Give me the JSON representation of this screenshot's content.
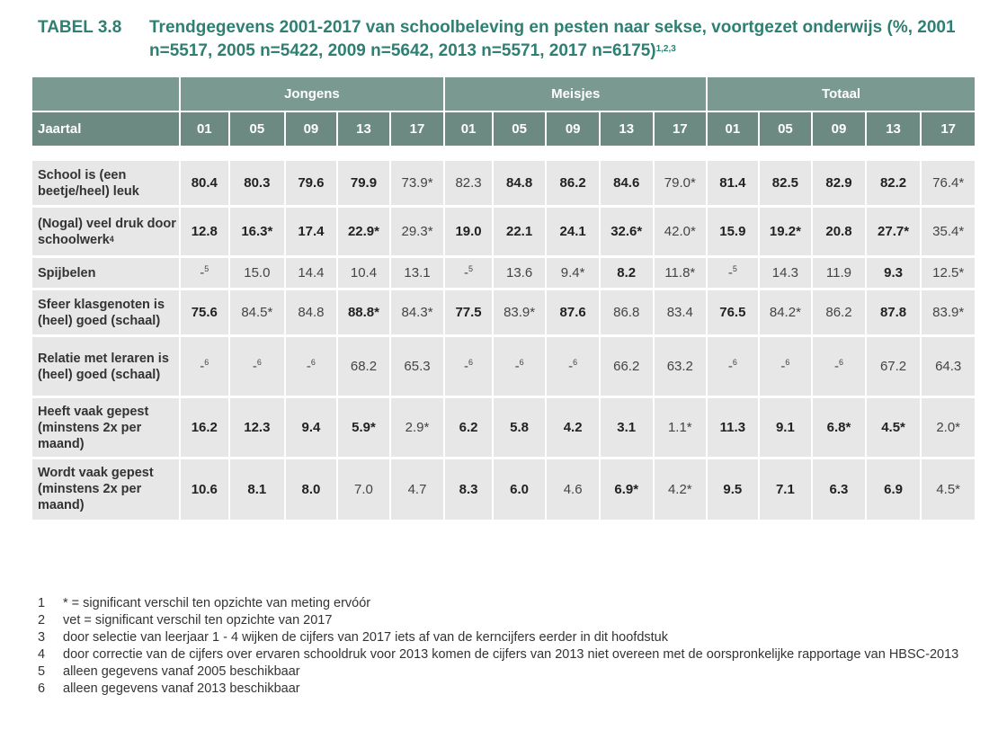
{
  "title": {
    "label": "TABEL 3.8",
    "text": "Trendgegevens 2001-2017 van schoolbeleving en pesten naar sekse, voortgezet onderwijs (%, 2001 n=5517, 2005 n=5422, 2009 n=5642, 2013 n=5571, 2017 n=6175)",
    "sup": "1,2,3"
  },
  "table": {
    "groups": [
      "Jongens",
      "Meisjes",
      "Totaal"
    ],
    "year_header": "Jaartal",
    "years": [
      "01",
      "05",
      "09",
      "13",
      "17"
    ],
    "rows": [
      {
        "label": "School is (een beetje/heel) leuk",
        "cells": [
          {
            "v": "80.4",
            "b": true
          },
          {
            "v": "80.3",
            "b": true
          },
          {
            "v": "79.6",
            "b": true
          },
          {
            "v": "79.9",
            "b": true
          },
          {
            "v": "73.9*",
            "b": false
          },
          {
            "v": "82.3",
            "b": false
          },
          {
            "v": "84.8",
            "b": true
          },
          {
            "v": "86.2",
            "b": true
          },
          {
            "v": "84.6",
            "b": true
          },
          {
            "v": "79.0*",
            "b": false
          },
          {
            "v": "81.4",
            "b": true
          },
          {
            "v": "82.5",
            "b": true
          },
          {
            "v": "82.9",
            "b": true
          },
          {
            "v": "82.2",
            "b": true
          },
          {
            "v": "76.4*",
            "b": false
          }
        ]
      },
      {
        "label": "(Nogal) veel druk door schoolwerk",
        "label_sup": "4",
        "cells": [
          {
            "v": "12.8",
            "b": true
          },
          {
            "v": "16.3*",
            "b": true
          },
          {
            "v": "17.4",
            "b": true
          },
          {
            "v": "22.9*",
            "b": true
          },
          {
            "v": "29.3*",
            "b": false
          },
          {
            "v": "19.0",
            "b": true
          },
          {
            "v": "22.1",
            "b": true
          },
          {
            "v": "24.1",
            "b": true
          },
          {
            "v": "32.6*",
            "b": true
          },
          {
            "v": "42.0*",
            "b": false
          },
          {
            "v": "15.9",
            "b": true
          },
          {
            "v": "19.2*",
            "b": true
          },
          {
            "v": "20.8",
            "b": true
          },
          {
            "v": "27.7*",
            "b": true
          },
          {
            "v": "35.4*",
            "b": false
          }
        ]
      },
      {
        "label": "Spijbelen",
        "cells": [
          {
            "v": "-",
            "sup": "5",
            "b": false
          },
          {
            "v": "15.0",
            "b": false
          },
          {
            "v": "14.4",
            "b": false
          },
          {
            "v": "10.4",
            "b": false
          },
          {
            "v": "13.1",
            "b": false
          },
          {
            "v": "-",
            "sup": "5",
            "b": false
          },
          {
            "v": "13.6",
            "b": false
          },
          {
            "v": "9.4*",
            "b": false
          },
          {
            "v": "8.2",
            "b": true
          },
          {
            "v": "11.8*",
            "b": false
          },
          {
            "v": "-",
            "sup": "5",
            "b": false
          },
          {
            "v": "14.3",
            "b": false
          },
          {
            "v": "11.9",
            "b": false
          },
          {
            "v": "9.3",
            "b": true
          },
          {
            "v": "12.5*",
            "b": false
          }
        ]
      },
      {
        "label": "Sfeer klasgenoten is (heel) goed (schaal)",
        "cells": [
          {
            "v": "75.6",
            "b": true
          },
          {
            "v": "84.5*",
            "b": false
          },
          {
            "v": "84.8",
            "b": false
          },
          {
            "v": "88.8*",
            "b": true
          },
          {
            "v": "84.3*",
            "b": false
          },
          {
            "v": "77.5",
            "b": true
          },
          {
            "v": "83.9*",
            "b": false
          },
          {
            "v": "87.6",
            "b": true
          },
          {
            "v": "86.8",
            "b": false
          },
          {
            "v": "83.4",
            "b": false
          },
          {
            "v": "76.5",
            "b": true
          },
          {
            "v": "84.2*",
            "b": false
          },
          {
            "v": "86.2",
            "b": false
          },
          {
            "v": "87.8",
            "b": true
          },
          {
            "v": "83.9*",
            "b": false
          }
        ]
      },
      {
        "label": "Relatie met leraren is (heel) goed (schaal)",
        "cells": [
          {
            "v": "-",
            "sup": "6",
            "b": false
          },
          {
            "v": "-",
            "sup": "6",
            "b": false
          },
          {
            "v": "-",
            "sup": "6",
            "b": false
          },
          {
            "v": "68.2",
            "b": false
          },
          {
            "v": "65.3",
            "b": false
          },
          {
            "v": "-",
            "sup": "6",
            "b": false
          },
          {
            "v": "-",
            "sup": "6",
            "b": false
          },
          {
            "v": "-",
            "sup": "6",
            "b": false
          },
          {
            "v": "66.2",
            "b": false
          },
          {
            "v": "63.2",
            "b": false
          },
          {
            "v": "-",
            "sup": "6",
            "b": false
          },
          {
            "v": "-",
            "sup": "6",
            "b": false
          },
          {
            "v": "-",
            "sup": "6",
            "b": false
          },
          {
            "v": "67.2",
            "b": false
          },
          {
            "v": "64.3",
            "b": false
          }
        ]
      },
      {
        "label": "Heeft vaak gepest (minstens 2x per maand)",
        "cells": [
          {
            "v": "16.2",
            "b": true
          },
          {
            "v": "12.3",
            "b": true
          },
          {
            "v": "9.4",
            "b": true
          },
          {
            "v": "5.9*",
            "b": true
          },
          {
            "v": "2.9*",
            "b": false
          },
          {
            "v": "6.2",
            "b": true
          },
          {
            "v": "5.8",
            "b": true
          },
          {
            "v": "4.2",
            "b": true
          },
          {
            "v": "3.1",
            "b": true
          },
          {
            "v": "1.1*",
            "b": false
          },
          {
            "v": "11.3",
            "b": true
          },
          {
            "v": "9.1",
            "b": true
          },
          {
            "v": "6.8*",
            "b": true
          },
          {
            "v": "4.5*",
            "b": true
          },
          {
            "v": "2.0*",
            "b": false
          }
        ]
      },
      {
        "label": "Wordt vaak gepest (minstens 2x per maand)",
        "cells": [
          {
            "v": "10.6",
            "b": true
          },
          {
            "v": "8.1",
            "b": true
          },
          {
            "v": "8.0",
            "b": true
          },
          {
            "v": "7.0",
            "b": false
          },
          {
            "v": "4.7",
            "b": false
          },
          {
            "v": "8.3",
            "b": true
          },
          {
            "v": "6.0",
            "b": true
          },
          {
            "v": "4.6",
            "b": false
          },
          {
            "v": "6.9*",
            "b": true
          },
          {
            "v": "4.2*",
            "b": false
          },
          {
            "v": "9.5",
            "b": true
          },
          {
            "v": "7.1",
            "b": true
          },
          {
            "v": "6.3",
            "b": true
          },
          {
            "v": "6.9",
            "b": true
          },
          {
            "v": "4.5*",
            "b": false
          }
        ]
      }
    ]
  },
  "notes": [
    {
      "num": "1",
      "text": "* = significant verschil ten opzichte van meting ervóór"
    },
    {
      "num": "2",
      "text": "vet = significant verschil ten opzichte van 2017"
    },
    {
      "num": "3",
      "text": "door selectie van leerjaar 1 - 4 wijken de cijfers van 2017 iets af van de kerncijfers eerder in dit hoofdstuk"
    },
    {
      "num": "4",
      "text": "door correctie van de cijfers over ervaren schooldruk voor 2013 komen de cijfers van 2013 niet overeen met de oorspronkelijke rapportage van HBSC-2013"
    },
    {
      "num": "5",
      "text": "alleen gegevens vanaf 2005 beschikbaar"
    },
    {
      "num": "6",
      "text": "alleen gegevens vanaf 2013 beschikbaar"
    }
  ],
  "colors": {
    "title": "#2f7f73",
    "header_group": "#7a9a91",
    "header_year": "#6c8a82",
    "cell_bg": "#e6e7e6"
  }
}
